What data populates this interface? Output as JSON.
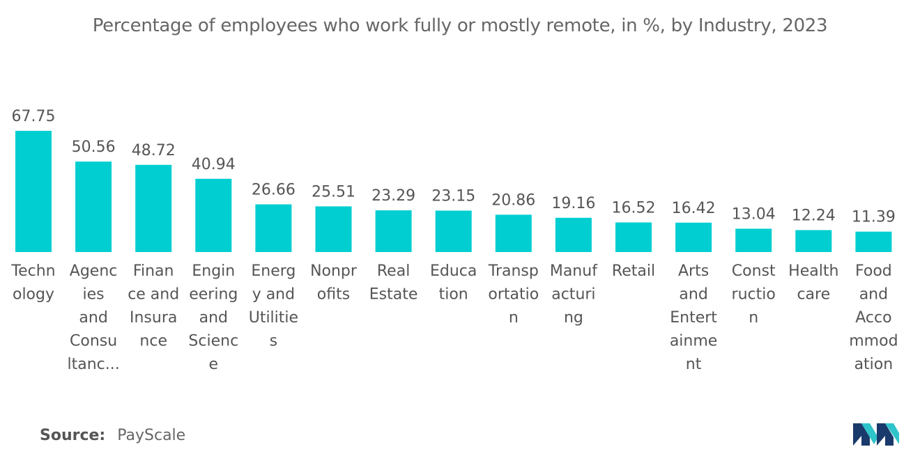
{
  "chart_data": {
    "type": "bar",
    "title": "Percentage of employees who work fully or mostly remote, in %, by Industry, 2023",
    "xlabel": "",
    "ylabel": "",
    "ylim": [
      0,
      70
    ],
    "grid": false,
    "legend": "none",
    "bar_color": "#00CED1",
    "categories": [
      "Technology",
      "Agencies and Consultancies",
      "Finance and Insurance",
      "Engineering and Science",
      "Energy and Utilities",
      "Nonprofits",
      "Real Estate",
      "Education",
      "Transportation",
      "Manufacturing",
      "Retail",
      "Arts and Entertainment",
      "Construction",
      "Health care",
      "Food and Accommodation"
    ],
    "category_label_lines": [
      [
        "Techn",
        "ology"
      ],
      [
        "Agenc",
        "ies",
        "and",
        "Consu",
        "ltanc..."
      ],
      [
        "Finan",
        "ce and",
        "Insura",
        "nce"
      ],
      [
        "Engin",
        "eering",
        "and",
        "Scienc",
        "e"
      ],
      [
        "Energ",
        "y and",
        "Utilitie",
        "s"
      ],
      [
        "Nonpr",
        "ofits"
      ],
      [
        "Real",
        "Estate"
      ],
      [
        "Educa",
        "tion"
      ],
      [
        "Transp",
        "ortatio",
        "n"
      ],
      [
        "Manuf",
        "acturi",
        "ng"
      ],
      [
        "Retail"
      ],
      [
        "Arts",
        "and",
        "Entert",
        "ainme",
        "nt"
      ],
      [
        "Const",
        "ructio",
        "n"
      ],
      [
        "Health",
        "care"
      ],
      [
        "Food",
        "and",
        "Acco",
        "mmod",
        "ation"
      ]
    ],
    "values": [
      67.75,
      50.56,
      48.72,
      40.94,
      26.66,
      25.51,
      23.29,
      23.15,
      20.86,
      19.16,
      16.52,
      16.42,
      13.04,
      12.24,
      11.39
    ],
    "value_labels": [
      "67.75",
      "50.56",
      "48.72",
      "40.94",
      "26.66",
      "25.51",
      "23.29",
      "23.15",
      "20.86",
      "19.16",
      "16.52",
      "16.42",
      "13.04",
      "12.24",
      "11.39"
    ]
  },
  "source": {
    "label": "Source:",
    "value": "PayScale"
  },
  "logo": {
    "colors": [
      "#1a3a6b",
      "#2ec4c9"
    ]
  }
}
